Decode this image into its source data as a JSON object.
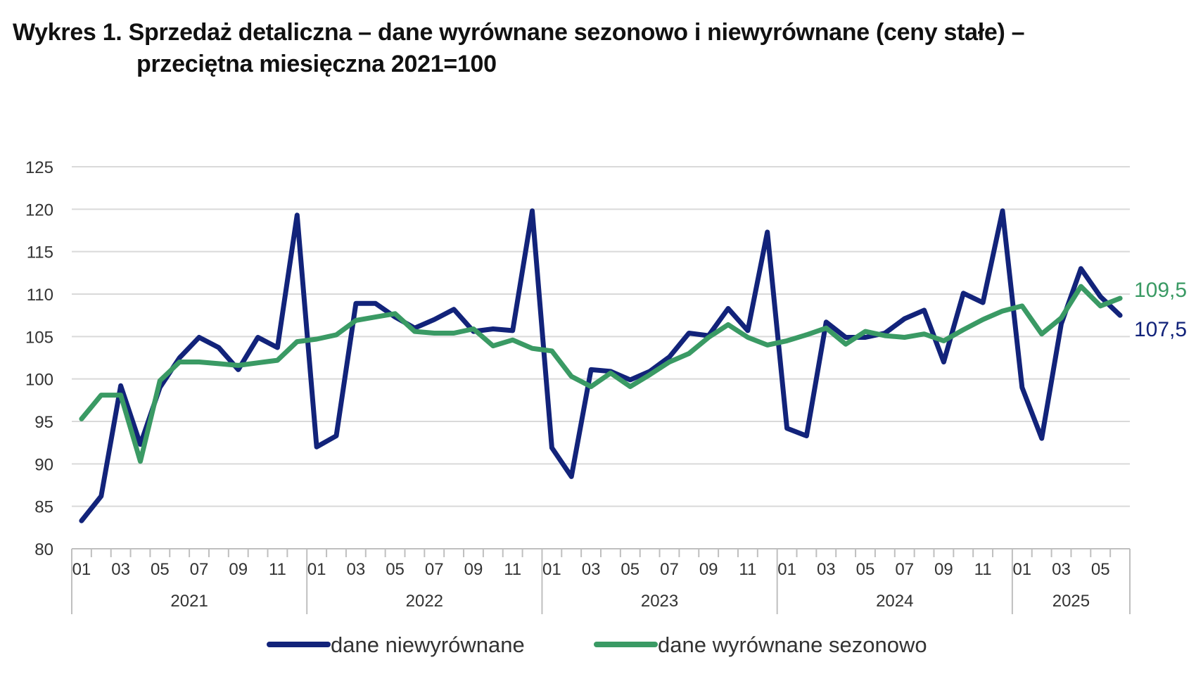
{
  "header": {
    "title_line1": "Wykres 1. Sprzedaż detaliczna – dane wyrównane sezonowo i niewyrównane (ceny stałe) –",
    "title_line2": "przeciętna miesięczna 2021=100"
  },
  "colors": {
    "unadjusted": "#12237a",
    "seasonal": "#3a9a64",
    "grid": "#d9d9d9",
    "axis": "#bfbfbf",
    "tick_text": "#333333"
  },
  "chart_data": {
    "type": "line",
    "title": "Wykres 1. Sprzedaż detaliczna – dane wyrównane sezonowo i niewyrównane (ceny stałe) – przeciętna miesięczna 2021=100",
    "xlabel": "",
    "ylabel": "",
    "ylim": [
      80,
      125
    ],
    "yticks": [
      "80",
      "85",
      "90",
      "95",
      "100",
      "105",
      "110",
      "115",
      "120",
      "125"
    ],
    "grid": true,
    "legend_position": "bottom",
    "month_ticks": [
      "01",
      "03",
      "05",
      "07",
      "09",
      "11",
      "01",
      "03",
      "05",
      "07",
      "09",
      "11",
      "01",
      "03",
      "05",
      "07",
      "09",
      "11",
      "01",
      "03",
      "05",
      "07",
      "09",
      "11",
      "01",
      "03",
      "05"
    ],
    "years": [
      "2021",
      "2022",
      "2023",
      "2024",
      "2025"
    ],
    "x": [
      "2021-01",
      "2021-02",
      "2021-03",
      "2021-04",
      "2021-05",
      "2021-06",
      "2021-07",
      "2021-08",
      "2021-09",
      "2021-10",
      "2021-11",
      "2021-12",
      "2022-01",
      "2022-02",
      "2022-03",
      "2022-04",
      "2022-05",
      "2022-06",
      "2022-07",
      "2022-08",
      "2022-09",
      "2022-10",
      "2022-11",
      "2022-12",
      "2023-01",
      "2023-02",
      "2023-03",
      "2023-04",
      "2023-05",
      "2023-06",
      "2023-07",
      "2023-08",
      "2023-09",
      "2023-10",
      "2023-11",
      "2023-12",
      "2024-01",
      "2024-02",
      "2024-03",
      "2024-04",
      "2024-05",
      "2024-06",
      "2024-07",
      "2024-08",
      "2024-09",
      "2024-10",
      "2024-11",
      "2024-12",
      "2025-01",
      "2025-02",
      "2025-03",
      "2025-04",
      "2025-05",
      "2025-06"
    ],
    "series": [
      {
        "name": "dane niewyrównane",
        "end_label": "107,5",
        "values": [
          83.3,
          86.2,
          99.2,
          92.3,
          99.0,
          102.5,
          104.9,
          103.7,
          101.1,
          104.9,
          103.7,
          119.3,
          92.0,
          93.3,
          108.9,
          108.9,
          107.3,
          106.0,
          107.0,
          108.2,
          105.6,
          105.9,
          105.7,
          119.8,
          91.9,
          88.5,
          101.1,
          100.9,
          99.9,
          100.9,
          102.6,
          105.4,
          105.1,
          108.3,
          105.7,
          117.3,
          94.2,
          93.3,
          106.7,
          104.9,
          104.9,
          105.4,
          107.1,
          108.1,
          102.0,
          110.1,
          109.0,
          119.8,
          99.0,
          93.0,
          106.5,
          113.0,
          109.7,
          107.5
        ]
      },
      {
        "name": "dane wyrównane sezonowo",
        "end_label": "109,5",
        "values": [
          95.3,
          98.1,
          98.1,
          90.3,
          99.8,
          102.0,
          102.0,
          101.8,
          101.6,
          101.9,
          102.2,
          104.4,
          104.7,
          105.2,
          106.9,
          107.3,
          107.7,
          105.6,
          105.4,
          105.4,
          105.9,
          103.9,
          104.6,
          103.6,
          103.3,
          100.3,
          99.1,
          100.7,
          99.1,
          100.5,
          102.0,
          103.0,
          104.9,
          106.4,
          104.9,
          104.0,
          104.5,
          105.2,
          106.0,
          104.1,
          105.6,
          105.1,
          104.9,
          105.3,
          104.5,
          105.8,
          107.0,
          108.0,
          108.6,
          105.3,
          107.2,
          110.9,
          108.6,
          109.5
        ]
      }
    ]
  }
}
